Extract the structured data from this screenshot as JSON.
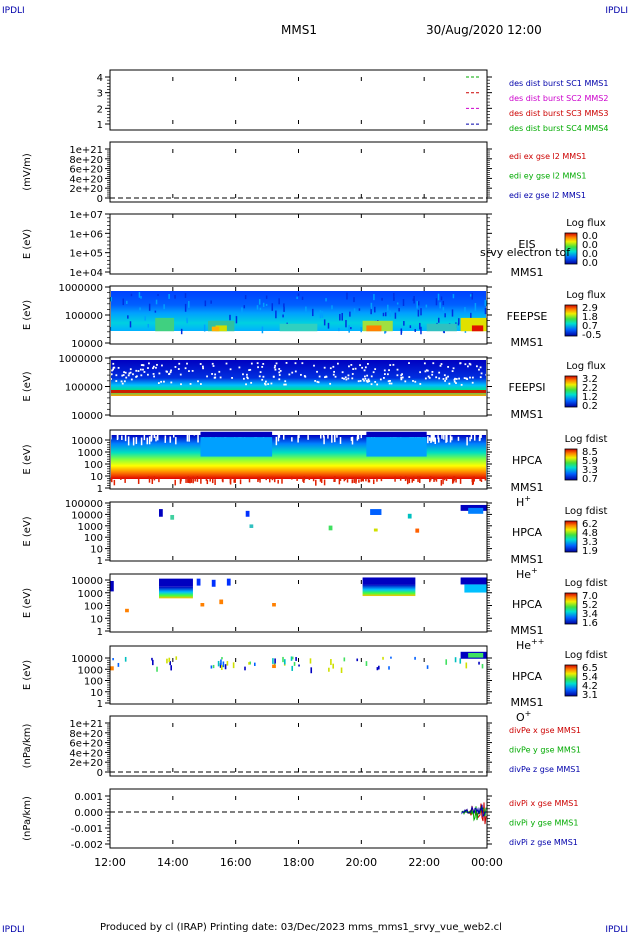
{
  "header": {
    "corner_label": "IPDLI",
    "mission": "MMS1",
    "datetime": "30/Aug/2020 12:00"
  },
  "footer": {
    "text": "Produced by cl (IRAP)   Printing date: 03/Dec/2023   mms_mms1_srvy_vue_web2.cl"
  },
  "time_axis": {
    "ticks": [
      "12:00",
      "14:00",
      "16:00",
      "18:00",
      "20:00",
      "22:00",
      "00:00"
    ]
  },
  "colors": {
    "red": "#cc0000",
    "green": "#00aa00",
    "blue": "#0000aa",
    "magenta": "#cc00cc"
  },
  "chart_data": [
    {
      "type": "line",
      "id": "des",
      "yticks": [
        "4",
        "3",
        "2",
        "1"
      ],
      "legend": [
        {
          "label": "des dist burst SC1 MMS1",
          "color": "#0000aa"
        },
        {
          "label": "des dist burst SC2 MMS2",
          "color": "#cc00cc"
        },
        {
          "label": "des dist burst SC3 MMS3",
          "color": "#cc0000"
        },
        {
          "label": "des dist burst SC4 MMS4",
          "color": "#00aa00"
        }
      ]
    },
    {
      "type": "line",
      "id": "edi",
      "ylabel": "(mV/m)",
      "yticks": [
        "1e+21",
        "8e+20",
        "6e+20",
        "4e+20",
        "2e+20",
        "0"
      ],
      "legend": [
        {
          "label": "edi ex gse l2 MMS1",
          "color": "#cc0000"
        },
        {
          "label": "edi ey gse l2 MMS1",
          "color": "#00aa00"
        },
        {
          "label": "edi ez gse l2 MMS1",
          "color": "#0000aa"
        }
      ]
    },
    {
      "type": "heatmap",
      "id": "eis",
      "ylabel": "E (eV)",
      "yticks": [
        "1e+07",
        "1e+06",
        "1e+05",
        "1e+04"
      ],
      "instrument": "EIS",
      "overlay": "srvy electron tof",
      "sc": "MMS1",
      "colorbar": {
        "title": "Log flux",
        "ticks": [
          "0.0",
          "0.0",
          "0.0",
          "0.0"
        ]
      }
    },
    {
      "type": "heatmap",
      "id": "feepse",
      "ylabel": "E (eV)",
      "yticks": [
        "1000000",
        "100000",
        "10000"
      ],
      "instrument": "FEEPSE",
      "sc": "MMS1",
      "colorbar": {
        "title": "Log flux",
        "ticks": [
          "2.9",
          "1.8",
          "0.7",
          "-0.5"
        ]
      }
    },
    {
      "type": "heatmap",
      "id": "feepsi",
      "ylabel": "E (eV)",
      "yticks": [
        "1000000",
        "100000",
        "10000"
      ],
      "instrument": "FEEPSI",
      "sc": "MMS1",
      "colorbar": {
        "title": "Log flux",
        "ticks": [
          "3.2",
          "2.2",
          "1.2",
          "0.2"
        ]
      }
    },
    {
      "type": "heatmap",
      "id": "hpca_h",
      "ylabel": "E (eV)",
      "yticks": [
        "10000",
        "1000",
        "100",
        "10",
        "1"
      ],
      "instrument": "HPCA",
      "sc": "MMS1",
      "species": "H",
      "charge": "+",
      "colorbar": {
        "title": "Log fdist",
        "ticks": [
          "8.5",
          "5.9",
          "3.3",
          "0.7"
        ]
      }
    },
    {
      "type": "heatmap",
      "id": "hpca_he1",
      "ylabel": "E (eV)",
      "yticks": [
        "100000",
        "10000",
        "1000",
        "100",
        "10",
        "1"
      ],
      "instrument": "HPCA",
      "sc": "MMS1",
      "species": "He",
      "charge": "+",
      "colorbar": {
        "title": "Log fdist",
        "ticks": [
          "6.2",
          "4.8",
          "3.3",
          "1.9"
        ]
      }
    },
    {
      "type": "heatmap",
      "id": "hpca_he2",
      "ylabel": "E (eV)",
      "yticks": [
        "10000",
        "1000",
        "100",
        "10",
        "1"
      ],
      "instrument": "HPCA",
      "sc": "MMS1",
      "species": "He",
      "charge": "++",
      "colorbar": {
        "title": "Log fdist",
        "ticks": [
          "7.0",
          "5.2",
          "3.4",
          "1.6"
        ]
      }
    },
    {
      "type": "heatmap",
      "id": "hpca_o",
      "ylabel": "E (eV)",
      "yticks": [
        "10000",
        "1000",
        "100",
        "10",
        "1"
      ],
      "instrument": "HPCA",
      "sc": "MMS1",
      "species": "O",
      "charge": "+",
      "colorbar": {
        "title": "Log fdist",
        "ticks": [
          "6.5",
          "5.4",
          "4.2",
          "3.1"
        ]
      }
    },
    {
      "type": "line",
      "id": "divpe",
      "ylabel": "(nPa/km)",
      "yticks": [
        "1e+21",
        "8e+20",
        "6e+20",
        "4e+20",
        "2e+20",
        "0"
      ],
      "legend": [
        {
          "label": "divPe x gse MMS1",
          "color": "#cc0000"
        },
        {
          "label": "divPe y gse MMS1",
          "color": "#00aa00"
        },
        {
          "label": "divPe z gse MMS1",
          "color": "#0000aa"
        }
      ]
    },
    {
      "type": "line",
      "id": "divpi",
      "ylabel": "(nPa/km)",
      "yticks": [
        "0.001",
        "0.000",
        "-0.001",
        "-0.002"
      ],
      "legend": [
        {
          "label": "divPi x gse MMS1",
          "color": "#cc0000"
        },
        {
          "label": "divPi y gse MMS1",
          "color": "#00aa00"
        },
        {
          "label": "divPi z gse MMS1",
          "color": "#0000aa"
        }
      ]
    }
  ]
}
